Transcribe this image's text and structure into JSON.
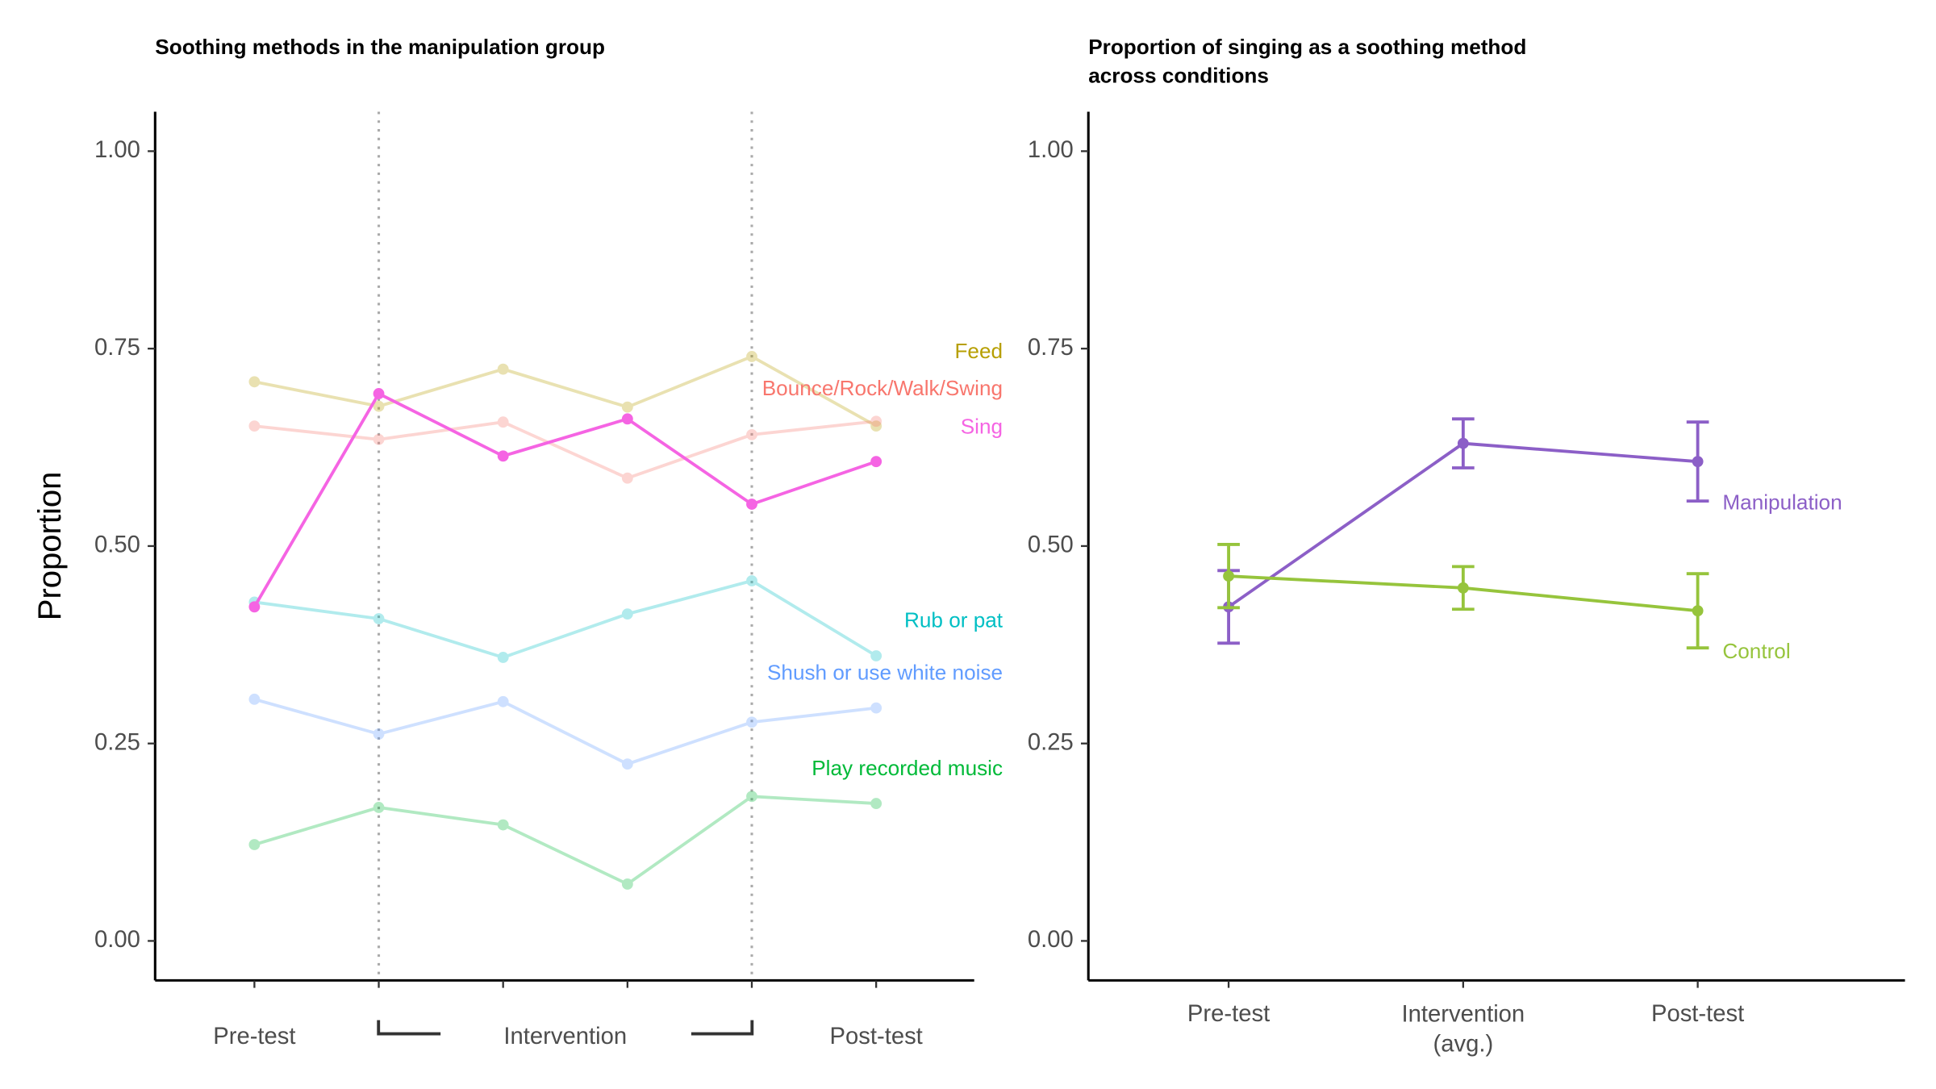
{
  "chart_data": [
    {
      "type": "line",
      "title": "Soothing methods in the manipulation group",
      "y_label": "Proportion",
      "categories": [
        "Pre-test",
        null,
        null,
        null,
        null,
        "Post-test"
      ],
      "bracket_label": "Intervention",
      "vlines": [
        1,
        4
      ],
      "highlight": "Sing",
      "ylim": [
        -0.05,
        1.05
      ],
      "yticks": [
        {
          "value": 0,
          "label": "0.00"
        },
        {
          "value": 0.25,
          "label": "0.25"
        },
        {
          "value": 0.5,
          "label": "0.50"
        },
        {
          "value": 0.75,
          "label": "0.75"
        },
        {
          "value": 1,
          "label": "1.00"
        }
      ],
      "series": [
        {
          "name": "Feed",
          "color": "#b79f00",
          "values": [
            0.708,
            0.677,
            0.724,
            0.676,
            0.74,
            0.652
          ]
        },
        {
          "name": "Bounce/Rock/Walk/Swing",
          "color": "#f8766d",
          "values": [
            0.652,
            0.635,
            0.657,
            0.586,
            0.641,
            0.658
          ]
        },
        {
          "name": "Sing",
          "color": "#f564e3",
          "values": [
            0.423,
            0.693,
            0.614,
            0.661,
            0.553,
            0.607
          ]
        },
        {
          "name": "Rub or pat",
          "color": "#00bfc4",
          "values": [
            0.429,
            0.408,
            0.359,
            0.414,
            0.456,
            0.361
          ]
        },
        {
          "name": "Shush or use white noise",
          "color": "#619cff",
          "values": [
            0.306,
            0.262,
            0.303,
            0.224,
            0.277,
            0.295
          ]
        },
        {
          "name": "Play recorded music",
          "color": "#00ba38",
          "values": [
            0.122,
            0.169,
            0.147,
            0.072,
            0.183,
            0.174
          ]
        }
      ]
    },
    {
      "type": "line",
      "title": [
        "Proportion of singing as a soothing method",
        "across conditions"
      ],
      "categories": [
        "Pre-test",
        "Intervention\n(avg.)",
        "Post-test"
      ],
      "ylim": [
        -0.05,
        1.05
      ],
      "yticks": [
        {
          "value": 0,
          "label": "0.00"
        },
        {
          "value": 0.25,
          "label": "0.25"
        },
        {
          "value": 0.5,
          "label": "0.50"
        },
        {
          "value": 0.75,
          "label": "0.75"
        },
        {
          "value": 1,
          "label": "1.00"
        }
      ],
      "series": [
        {
          "name": "Manipulation",
          "color": "#8c5fc7",
          "values": [
            0.423,
            0.63,
            0.607
          ],
          "errors": [
            0.046,
            0.031,
            0.05
          ]
        },
        {
          "name": "Control",
          "color": "#96c43c",
          "values": [
            0.462,
            0.447,
            0.418
          ],
          "errors": [
            0.04,
            0.027,
            0.047
          ]
        }
      ]
    }
  ]
}
